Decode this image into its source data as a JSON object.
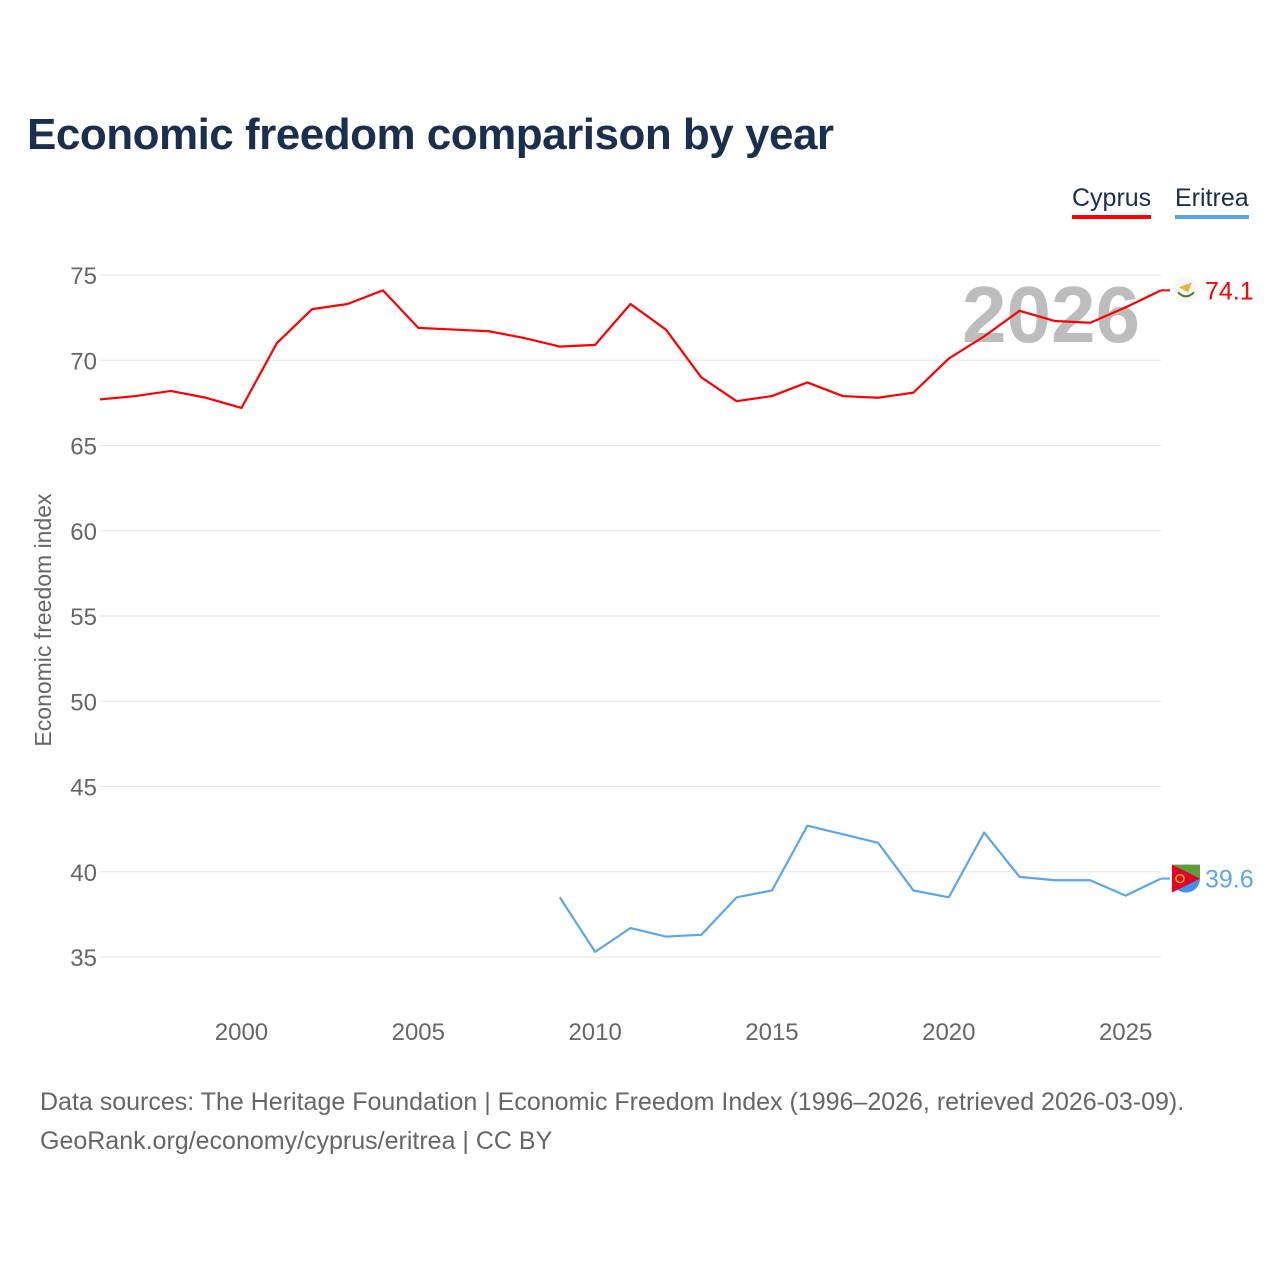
{
  "title": "Economic freedom comparison by year",
  "legend": [
    {
      "label": "Cyprus",
      "color": "#ff0000"
    },
    {
      "label": "Eritrea",
      "color": "#5aa6ee"
    }
  ],
  "footer": {
    "line1": "Data sources: The Heritage Foundation | Economic Freedom Index (1996–2026, retrieved 2026-03-09).",
    "line2": "GeoRank.org/economy/cyprus/eritrea | CC BY"
  },
  "chart_data": {
    "type": "line",
    "title": "Economic freedom comparison by year",
    "xlabel": "",
    "ylabel": "Economic freedom index",
    "xlim": [
      1996,
      2026
    ],
    "ylim": [
      32,
      77
    ],
    "yticks": [
      35,
      40,
      45,
      50,
      55,
      60,
      65,
      70,
      75
    ],
    "xticks": [
      2000,
      2005,
      2010,
      2015,
      2020,
      2025
    ],
    "watermark_year": "2026",
    "grid": true,
    "legend_position": "top-right",
    "series": [
      {
        "name": "Cyprus",
        "color": "#ff0000",
        "end_label": "74.1",
        "x": [
          1996,
          1997,
          1998,
          1999,
          2000,
          2001,
          2002,
          2003,
          2004,
          2005,
          2006,
          2007,
          2008,
          2009,
          2010,
          2011,
          2012,
          2013,
          2014,
          2015,
          2016,
          2017,
          2018,
          2019,
          2020,
          2021,
          2022,
          2023,
          2024,
          2025,
          2026
        ],
        "values": [
          67.7,
          67.9,
          68.2,
          67.8,
          67.2,
          71.0,
          73.0,
          73.3,
          74.1,
          71.9,
          71.8,
          71.7,
          71.3,
          70.8,
          70.9,
          73.3,
          71.8,
          69.0,
          67.6,
          67.9,
          68.7,
          67.9,
          67.8,
          68.1,
          70.1,
          71.4,
          72.9,
          72.3,
          72.2,
          73.1,
          74.1
        ]
      },
      {
        "name": "Eritrea",
        "color": "#5aa6ee",
        "end_label": "39.6",
        "x": [
          2009,
          2010,
          2011,
          2012,
          2013,
          2014,
          2015,
          2016,
          2017,
          2018,
          2019,
          2020,
          2021,
          2022,
          2023,
          2024,
          2025,
          2026
        ],
        "values": [
          38.5,
          35.3,
          36.7,
          36.2,
          36.3,
          38.5,
          38.9,
          42.7,
          42.2,
          41.7,
          38.9,
          38.5,
          42.3,
          39.7,
          39.5,
          39.5,
          38.6,
          39.6
        ]
      }
    ]
  }
}
